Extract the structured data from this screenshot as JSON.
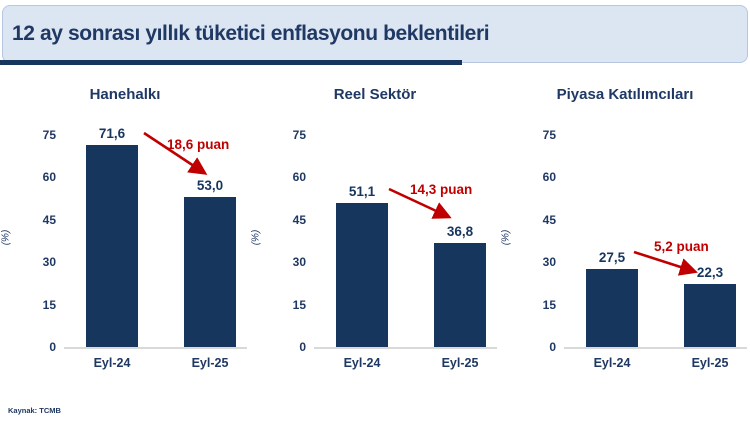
{
  "header": {
    "title": "12 ay sonrası yıllık tüketici enflasyonu beklentileri"
  },
  "footer": {
    "source": "Kaynak: TCMB"
  },
  "colors": {
    "navy": "#17365d",
    "text_navy": "#1f3864",
    "red": "#c00000",
    "header_bg": "#dce6f2",
    "header_border": "#b6c6e3",
    "baseline": "#d9d9d9"
  },
  "chart_data": [
    {
      "type": "bar",
      "title": "Hanehalkı",
      "categories": [
        "Eyl-24",
        "Eyl-25"
      ],
      "values": [
        71.6,
        53.0
      ],
      "value_labels": [
        "71,6",
        "53,0"
      ],
      "annotation": "18,6 puan",
      "ylabel": "(%)",
      "ylim": [
        0,
        75
      ],
      "yticks": [
        0,
        15,
        30,
        45,
        60,
        75
      ],
      "grid": false,
      "legend": false
    },
    {
      "type": "bar",
      "title": "Reel Sektör",
      "categories": [
        "Eyl-24",
        "Eyl-25"
      ],
      "values": [
        51.1,
        36.8
      ],
      "value_labels": [
        "51,1",
        "36,8"
      ],
      "annotation": "14,3 puan",
      "ylabel": "(%)",
      "ylim": [
        0,
        75
      ],
      "yticks": [
        0,
        15,
        30,
        45,
        60,
        75
      ],
      "grid": false,
      "legend": false
    },
    {
      "type": "bar",
      "title": "Piyasa Katılımcıları",
      "categories": [
        "Eyl-24",
        "Eyl-25"
      ],
      "values": [
        27.5,
        22.3
      ],
      "value_labels": [
        "27,5",
        "22,3"
      ],
      "annotation": "5,2 puan",
      "ylabel": "(%)",
      "ylim": [
        0,
        75
      ],
      "yticks": [
        0,
        15,
        30,
        45,
        60,
        75
      ],
      "grid": false,
      "legend": false
    }
  ]
}
